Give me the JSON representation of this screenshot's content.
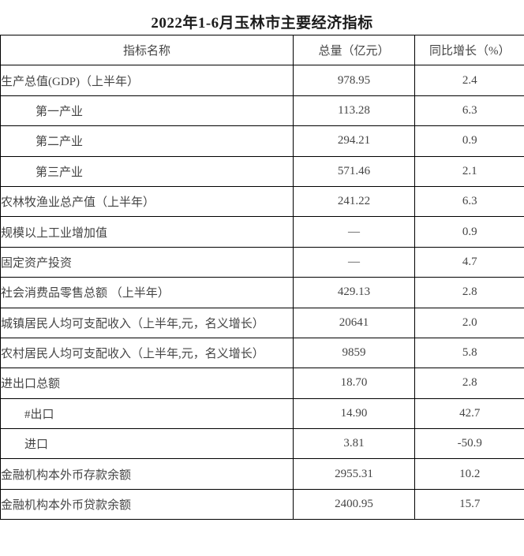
{
  "title": "2022年1-6月玉林市主要经济指标",
  "table": {
    "columns": [
      "指标名称",
      "总量（亿元）",
      "同比增长（%）"
    ],
    "rows": [
      {
        "name": "生产总值(GDP)（上半年）",
        "total": "978.95",
        "growth": "2.4",
        "indent": 0,
        "growth_bold": false
      },
      {
        "name": "第一产业",
        "total": "113.28",
        "growth": "6.3",
        "indent": 2,
        "growth_bold": false
      },
      {
        "name": "第二产业",
        "total": "294.21",
        "growth": "0.9",
        "indent": 2,
        "growth_bold": false
      },
      {
        "name": "第三产业",
        "total": "571.46",
        "growth": "2.1",
        "indent": 2,
        "growth_bold": false
      },
      {
        "name": "农林牧渔业总产值（上半年）",
        "total": "241.22",
        "growth": "6.3",
        "indent": 0,
        "growth_bold": false
      },
      {
        "name": "规模以上工业增加值",
        "total": "—",
        "growth": "0.9",
        "indent": 0,
        "growth_bold": true
      },
      {
        "name": "固定资产投资",
        "total": "—",
        "growth": "4.7",
        "indent": 0,
        "growth_bold": false
      },
      {
        "name": "社会消费品零售总额 （上半年）",
        "total": "429.13",
        "growth": "2.8",
        "indent": 0,
        "growth_bold": false
      },
      {
        "name": "城镇居民人均可支配收入（上半年,元，名义增长）",
        "total": "20641",
        "growth": "2.0",
        "indent": 0,
        "growth_bold": false
      },
      {
        "name": "农村居民人均可支配收入（上半年,元，名义增长）",
        "total": "9859",
        "growth": "5.8",
        "indent": 0,
        "growth_bold": false
      },
      {
        "name": "进出口总额",
        "total": "18.70",
        "growth": "2.8",
        "indent": 0,
        "growth_bold": false
      },
      {
        "name": "#出口",
        "total": "14.90",
        "growth": "42.7",
        "indent": 1,
        "growth_bold": false
      },
      {
        "name": "进口",
        "total": "3.81",
        "growth": "-50.9",
        "indent": 1,
        "growth_bold": false
      },
      {
        "name": "金融机构本外币存款余额",
        "total": "2955.31",
        "growth": "10.2",
        "indent": 0,
        "growth_bold": false
      },
      {
        "name": "金融机构本外币贷款余额",
        "total": "2400.95",
        "growth": "15.7",
        "indent": 0,
        "growth_bold": false
      }
    ]
  },
  "colors": {
    "border": "#000000",
    "title_text": "#1c1c1c",
    "body_text": "#454545",
    "background": "#ffffff"
  }
}
